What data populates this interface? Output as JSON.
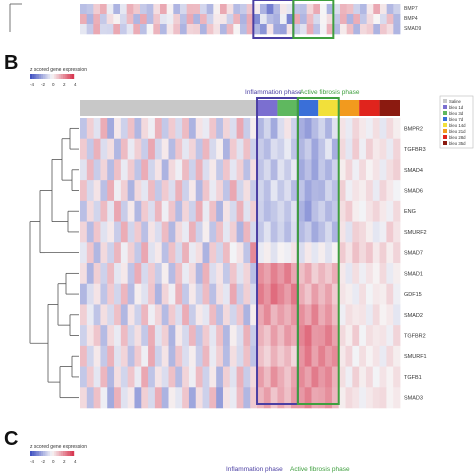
{
  "panels": {
    "b": {
      "letter": "B"
    },
    "c": {
      "letter": "C"
    }
  },
  "legend_scale": {
    "title": "z scored gene expression",
    "ticks": [
      "-4",
      "-2",
      "0",
      "2",
      "4"
    ],
    "ticks_c": [
      "-4",
      "-2",
      "0",
      "2",
      "4"
    ],
    "low_color": "#3b4cc0",
    "mid_color": "#f7f7f7",
    "high_color": "#d6304a"
  },
  "phases": {
    "inflammation": {
      "label": "Inflammation phase",
      "color": "#4b3fa3"
    },
    "fibrosis": {
      "label": "Active fibrosis phase",
      "color": "#3f9f3f"
    }
  },
  "group_legend": [
    {
      "label": "Saline",
      "color": "#c8c8c8"
    },
    {
      "label": "bleo 1d",
      "color": "#7b6fd0"
    },
    {
      "label": "bleo 3d",
      "color": "#5fb85f"
    },
    {
      "label": "bleo 7d",
      "color": "#3a6fd8"
    },
    {
      "label": "bleo 14d",
      "color": "#f2e03a"
    },
    {
      "label": "bleo 21d",
      "color": "#f29a1e"
    },
    {
      "label": "bleo 28d",
      "color": "#e0241d"
    },
    {
      "label": "bleo 35d",
      "color": "#8b1a10"
    }
  ],
  "top_panel_genes": [
    "BMP7",
    "BMP4",
    "SMAD9"
  ],
  "chart_data": {
    "type": "heatmap",
    "title": "z scored gene expression",
    "rows": [
      "BMPR2",
      "TGFBR3",
      "SMAD4",
      "SMAD6",
      "ENG",
      "SMURF2",
      "SMAD7",
      "SMAD1",
      "GDF15",
      "SMAD2",
      "TGFBR2",
      "SMURF1",
      "TGFB1",
      "SMAD3"
    ],
    "column_groups": [
      {
        "name": "Saline",
        "count": 26
      },
      {
        "name": "bleo 1d",
        "count": 3
      },
      {
        "name": "bleo 3d",
        "count": 3
      },
      {
        "name": "bleo 7d",
        "count": 3
      },
      {
        "name": "bleo 14d",
        "count": 3
      },
      {
        "name": "bleo 21d",
        "count": 3
      },
      {
        "name": "bleo 28d",
        "count": 3
      },
      {
        "name": "bleo 35d",
        "count": 3
      }
    ],
    "value_range": [
      -4,
      4
    ],
    "values": [
      [
        -1.2,
        0.8,
        -0.5,
        1.5,
        -1.8,
        0.3,
        -0.9,
        1.1,
        -1.5,
        0.6,
        -0.2,
        1.4,
        -1.1,
        0.9,
        -0.7,
        1.2,
        -1.6,
        0.4,
        -0.3,
        1.0,
        -1.3,
        0.7,
        -0.6,
        1.6,
        -1.0,
        0.2,
        -1.5,
        -0.8,
        -1.8,
        -0.6,
        0.4,
        -0.9,
        -1.7,
        -2.1,
        -1.4,
        -0.8,
        -1.6,
        -0.5,
        0.4,
        -0.3,
        0.7,
        0.3,
        -0.2,
        0.5,
        -0.4,
        0.6,
        0.2
      ],
      [
        0.9,
        -1.1,
        1.4,
        -0.6,
        0.5,
        -1.5,
        1.2,
        -0.3,
        0.8,
        -1.0,
        1.6,
        -0.8,
        0.3,
        -1.4,
        1.0,
        -0.4,
        0.7,
        -1.2,
        1.3,
        -0.7,
        0.2,
        -1.6,
        0.9,
        -0.5,
        1.1,
        -0.9,
        -1.0,
        -1.4,
        -0.6,
        -0.9,
        -0.3,
        -1.2,
        -1.5,
        -1.0,
        -1.9,
        -1.2,
        -0.4,
        -1.7,
        0.6,
        -0.4,
        0.9,
        -0.2,
        0.8,
        0.3,
        0.5,
        -0.3,
        0.7
      ],
      [
        -0.5,
        1.3,
        -1.0,
        0.7,
        -1.4,
        1.1,
        -0.3,
        0.9,
        -1.2,
        1.5,
        -0.8,
        0.4,
        -1.6,
        0.6,
        -0.2,
        1.2,
        -0.9,
        1.4,
        -0.6,
        0.3,
        -1.1,
        1.0,
        -0.4,
        0.8,
        -1.3,
        0.5,
        -1.2,
        -0.7,
        -1.5,
        -0.5,
        -1.0,
        -0.3,
        -1.8,
        -1.3,
        -2.0,
        -1.1,
        -1.6,
        -0.9,
        0.2,
        0.7,
        -0.2,
        0.6,
        0.1,
        0.4,
        -0.3,
        0.5,
        0.8
      ],
      [
        1.1,
        -0.7,
        0.4,
        -1.3,
        1.5,
        -0.2,
        0.8,
        -1.6,
        0.6,
        -0.4,
        1.2,
        -1.1,
        0.9,
        -0.6,
        1.4,
        -0.9,
        0.3,
        -1.5,
        1.0,
        -0.3,
        0.7,
        -1.2,
        1.6,
        -0.8,
        0.5,
        -1.0,
        -0.8,
        -1.3,
        -0.4,
        -1.1,
        -0.6,
        -1.4,
        -1.2,
        -1.9,
        -1.5,
        -1.6,
        -0.8,
        -1.3,
        0.8,
        -0.2,
        0.4,
        0.2,
        0.6,
        -0.3,
        0.7,
        0.3,
        -0.1
      ],
      [
        -1.3,
        0.6,
        -0.8,
        1.2,
        -0.4,
        1.6,
        -1.0,
        0.3,
        -1.5,
        0.9,
        -0.6,
        1.3,
        -0.2,
        1.0,
        -1.4,
        0.7,
        -0.9,
        1.5,
        -0.3,
        1.1,
        -1.6,
        0.4,
        -0.7,
        1.4,
        -0.5,
        0.8,
        -0.9,
        -1.4,
        -1.1,
        -0.7,
        -1.2,
        -0.5,
        -1.6,
        -2.2,
        -1.3,
        -0.9,
        -1.5,
        -1.1,
        0.5,
        0.9,
        0.2,
        -0.1,
        0.4,
        0.7,
        0.3,
        -0.2,
        0.6
      ],
      [
        0.7,
        -1.4,
        1.0,
        -0.5,
        0.3,
        -1.0,
        1.5,
        -0.8,
        0.9,
        -1.3,
        0.4,
        -0.6,
        1.2,
        -1.5,
        0.6,
        -0.3,
        1.4,
        -0.9,
        0.2,
        -1.2,
        1.1,
        -0.4,
        0.8,
        -1.6,
        1.3,
        -0.7,
        -1.1,
        -0.5,
        -1.3,
        -0.8,
        -1.4,
        -0.6,
        -1.4,
        -1.0,
        -1.8,
        -1.3,
        -0.7,
        -1.6,
        0.4,
        -0.5,
        0.8,
        0.6,
        0.2,
        -0.4,
        -0.2,
        0.9,
        0.4
      ],
      [
        -0.4,
        1.0,
        -1.5,
        0.6,
        -0.9,
        1.3,
        -0.2,
        0.8,
        -1.1,
        1.6,
        -0.5,
        0.3,
        -1.3,
        1.1,
        -0.7,
        1.4,
        -0.3,
        0.5,
        -1.6,
        0.9,
        -0.8,
        1.2,
        -0.1,
        0.4,
        -1.2,
        2.2,
        -0.3,
        0.2,
        -0.5,
        0.1,
        -0.2,
        0.4,
        -0.6,
        0.3,
        -0.4,
        0.2,
        -0.5,
        0.1,
        0.9,
        0.4,
        1.1,
        0.6,
        1.0,
        0.3,
        0.8,
        0.2,
        0.7
      ],
      [
        0.5,
        -1.6,
        0.8,
        -0.9,
        1.2,
        -0.4,
        0.3,
        -1.2,
        1.5,
        -0.7,
        0.9,
        -1.0,
        0.2,
        -1.4,
        1.1,
        -0.3,
        0.6,
        -1.5,
        1.4,
        -0.6,
        0.4,
        -1.1,
        1.0,
        -0.5,
        0.7,
        -1.3,
        2.1,
        1.7,
        2.4,
        1.9,
        2.5,
        1.6,
        1.1,
        1.6,
        0.8,
        1.3,
        0.9,
        1.5,
        0.3,
        -0.4,
        0.5,
        -0.2,
        0.4,
        0.1,
        0.6,
        -0.3,
        0.2
      ],
      [
        -1.5,
        -0.6,
        0.4,
        -1.2,
        0.9,
        -0.8,
        1.3,
        -1.4,
        0.2,
        -0.5,
        1.0,
        -1.6,
        0.7,
        -0.2,
        1.4,
        -1.1,
        0.3,
        -0.9,
        1.2,
        -1.3,
        0.5,
        -0.4,
        1.6,
        -1.0,
        0.8,
        -0.7,
        2.5,
        2.0,
        2.8,
        2.3,
        1.8,
        2.6,
        1.5,
        1.0,
        1.8,
        1.2,
        1.7,
        0.9,
        0.4,
        0.2,
        -0.3,
        0.5,
        -0.1,
        0.3,
        0.2,
        0.7,
        -0.2
      ],
      [
        0.8,
        -0.3,
        -1.2,
        0.5,
        -0.7,
        1.1,
        -1.5,
        0.4,
        -0.9,
        1.3,
        -0.2,
        0.7,
        -1.4,
        0.9,
        -0.6,
        1.5,
        -1.0,
        0.3,
        -0.4,
        1.2,
        -1.3,
        0.6,
        -0.8,
        1.0,
        -1.6,
        0.2,
        1.6,
        2.2,
        1.3,
        1.8,
        1.4,
        2.0,
        2.1,
        1.6,
        2.4,
        1.5,
        2.0,
        1.2,
        -0.2,
        0.5,
        0.3,
        0.4,
        -0.3,
        0.6,
        0.1,
        0.3,
        -0.4
      ],
      [
        -0.9,
        0.4,
        1.0,
        -1.4,
        0.6,
        -0.3,
        1.2,
        -0.8,
        0.5,
        -1.1,
        1.5,
        -0.5,
        0.8,
        -1.6,
        0.3,
        -0.7,
        1.3,
        -1.2,
        0.9,
        -0.4,
        1.1,
        -1.5,
        0.2,
        -0.6,
        1.4,
        -1.0,
        1.4,
        1.0,
        1.8,
        1.2,
        1.9,
        1.5,
        2.3,
        2.8,
        1.9,
        2.0,
        2.5,
        1.7,
        0.6,
        0.2,
        0.9,
        -0.1,
        0.5,
        0.3,
        0.4,
        -0.2,
        0.7
      ],
      [
        1.2,
        -0.8,
        0.3,
        -1.1,
        1.4,
        -0.5,
        0.7,
        -1.3,
        0.9,
        -0.2,
        1.6,
        -0.9,
        0.4,
        -1.5,
        1.0,
        -0.6,
        0.2,
        -1.0,
        1.3,
        -0.3,
        0.8,
        -1.4,
        0.5,
        -0.7,
        1.1,
        -1.2,
        1.1,
        0.7,
        1.4,
        0.9,
        1.3,
        0.6,
        2.0,
        2.6,
        1.7,
        2.4,
        1.8,
        2.2,
        0.3,
        0.7,
        -0.1,
        0.5,
        0.1,
        0.4,
        -0.3,
        0.6,
        0.2
      ],
      [
        -1.1,
        0.9,
        -0.4,
        1.3,
        -1.5,
        0.5,
        -0.8,
        1.0,
        -0.3,
        1.6,
        -1.2,
        0.4,
        -0.6,
        1.1,
        -1.4,
        0.7,
        -0.2,
        1.2,
        -0.9,
        0.3,
        -1.6,
        0.8,
        -0.5,
        1.4,
        -1.0,
        0.6,
        1.8,
        1.2,
        2.1,
        1.5,
        1.0,
        1.7,
        2.2,
        1.7,
        2.5,
        1.9,
        2.3,
        1.4,
        0.5,
        -0.2,
        0.8,
        0.2,
        0.6,
        -0.1,
        0.4,
        0.1,
        0.5
      ],
      [
        0.6,
        -1.3,
        1.1,
        -0.2,
        -1.8,
        1.4,
        -0.5,
        0.3,
        -2.0,
        0.8,
        -0.7,
        1.5,
        -1.6,
        0.2,
        -0.4,
        1.0,
        -1.9,
        0.5,
        -0.9,
        1.3,
        -2.1,
        0.4,
        -0.3,
        1.2,
        -1.5,
        0.9,
        1.3,
        1.8,
        1.0,
        1.6,
        1.1,
        1.9,
        1.9,
        2.4,
        1.6,
        1.7,
        2.1,
        1.3,
        0.2,
        0.6,
        0.4,
        -0.2,
        0.3,
        0.5,
        0.6,
        0.1,
        0.3
      ]
    ],
    "top_panel_rows": [
      "BMP7",
      "BMP4",
      "SMAD9"
    ],
    "annotations": [
      "Inflammation phase",
      "Active fibrosis phase"
    ],
    "legend_position": "top-right"
  }
}
